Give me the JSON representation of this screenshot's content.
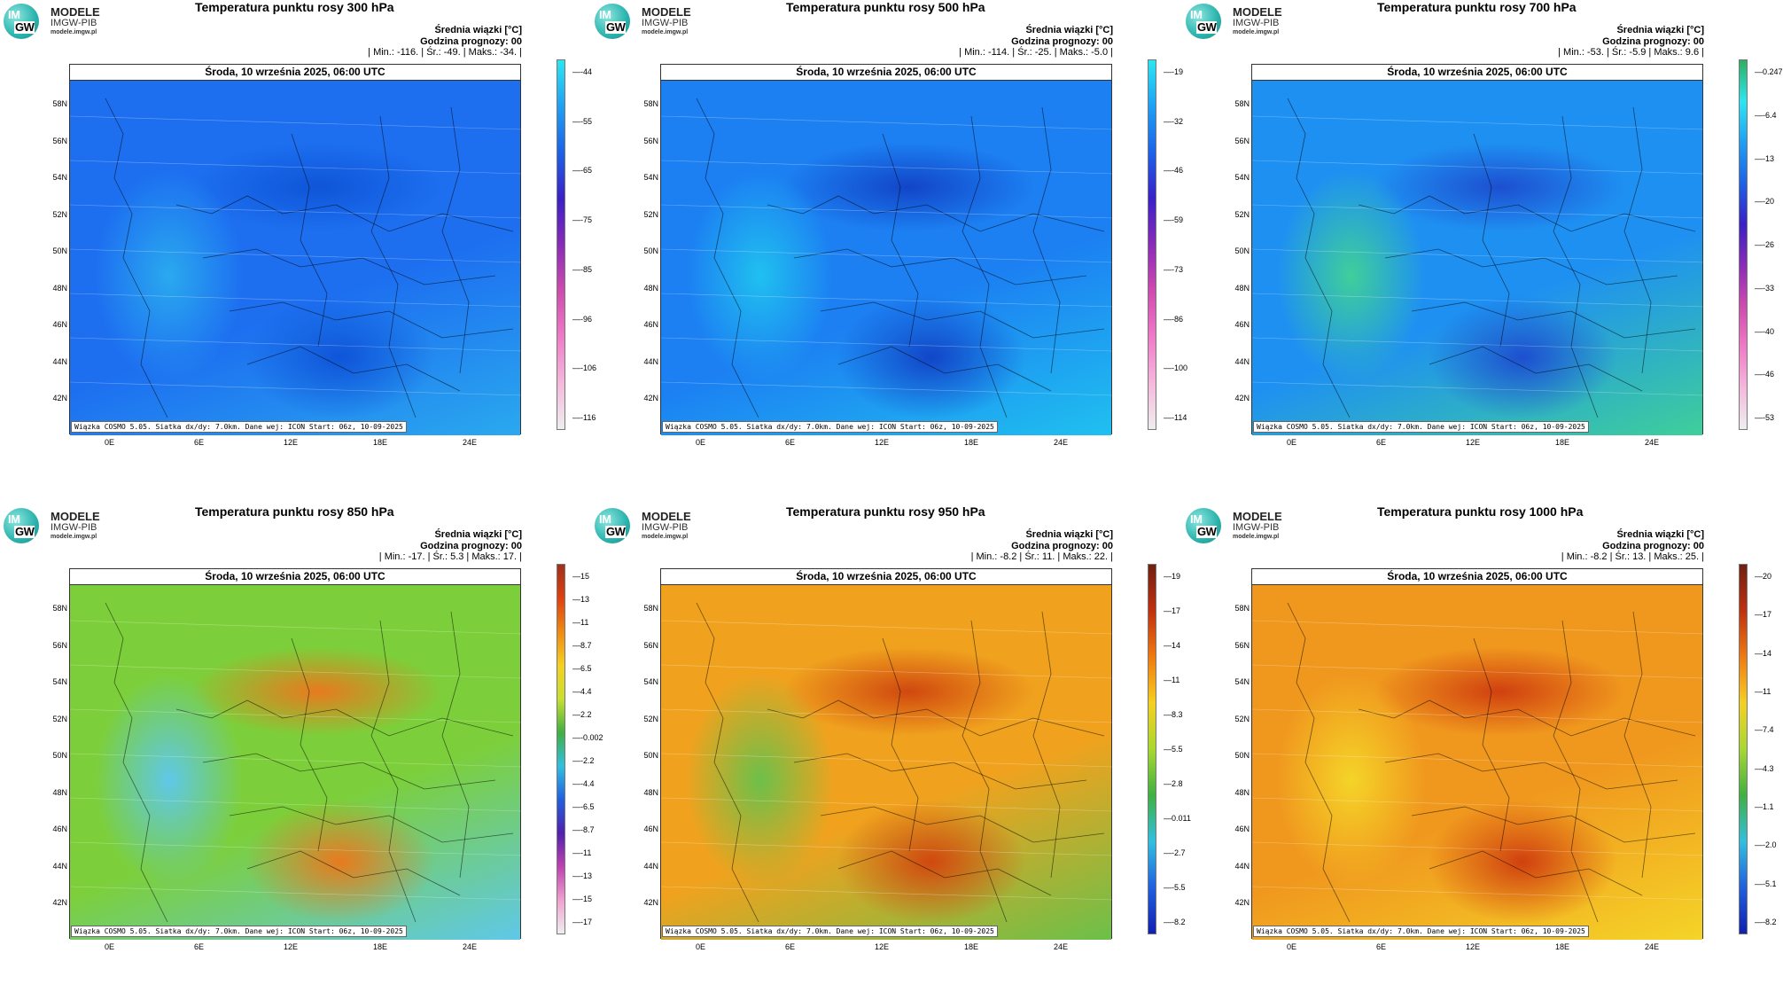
{
  "common": {
    "logo_title": "MODELE",
    "logo_sub": "IMGW-PIB",
    "logo_url": "modele.imgw.pl",
    "logo_im": "IM",
    "logo_gw": "GW",
    "mean_label": "Średnia wiązki [°C]",
    "forecast_hour": "Godzina prognozy: 00",
    "date": "Środa, 10 września 2025, 06:00 UTC",
    "footer": "Wiązka COSMO 5.05. Siatka dx/dy: 7.0km. Dane wej: ICON Start: 06z, 10-09-2025",
    "lat_labels": [
      "58N",
      "56N",
      "54N",
      "52N",
      "50N",
      "48N",
      "46N",
      "44N",
      "42N"
    ],
    "lon_labels": [
      "0E",
      "6E",
      "12E",
      "18E",
      "24E"
    ]
  },
  "panels": [
    {
      "title": "Temperatura punktu rosy 300 hPa",
      "stats": "| Min.: -116. | Śr.: -49. | Maks.: -34. |",
      "colorbar": [
        "-44",
        "-55",
        "-65",
        "-75",
        "-85",
        "-96",
        "-106",
        "-116"
      ],
      "colors": {
        "bg": "#1d6ff0",
        "a": "#0f55d8",
        "b": "#2aa9ef"
      },
      "scale": [
        "#2ce6f0",
        "#1ea0f5",
        "#1c62e8",
        "#3a20c8",
        "#8a2ab8",
        "#d04ab0",
        "#f07ac8",
        "#f5b8dc",
        "#eeeeee"
      ]
    },
    {
      "title": "Temperatura punktu rosy 500 hPa",
      "stats": "| Min.: -114. | Śr.: -25. | Maks.: -5.0 |",
      "colorbar": [
        "-19",
        "-32",
        "-46",
        "-59",
        "-73",
        "-86",
        "-100",
        "-114"
      ],
      "colors": {
        "bg": "#1c7ff2",
        "a": "#1245c8",
        "b": "#20c0f0"
      },
      "scale": [
        "#2ce6f0",
        "#1ea0f5",
        "#1c62e8",
        "#3a20c8",
        "#8a2ab8",
        "#d04ab0",
        "#f07ac8",
        "#f5b8dc",
        "#eeeeee"
      ]
    },
    {
      "title": "Temperatura punktu rosy 700 hPa",
      "stats": "| Min.: -53. | Śr.: -5.9 | Maks.: 9.6 |",
      "colorbar": [
        "0.247",
        "-6.4",
        "-13",
        "-20",
        "-26",
        "-33",
        "-40",
        "-46",
        "-53"
      ],
      "colors": {
        "bg": "#1e90f2",
        "a": "#1d4fd0",
        "b": "#3fcf9a"
      },
      "scale": [
        "#2db060",
        "#2ce6f0",
        "#1ea0f5",
        "#1c62e8",
        "#3a20c8",
        "#8a2ab8",
        "#d04ab0",
        "#f07ac8",
        "#f5b8dc",
        "#eeeeee"
      ]
    },
    {
      "title": "Temperatura punktu rosy 850 hPa",
      "stats": "| Min.: -17. | Śr.: 5.3 | Maks.: 17. |",
      "colorbar": [
        "15",
        "13",
        "11",
        "8.7",
        "6.5",
        "4.4",
        "2.2",
        "-0.002",
        "-2.2",
        "-4.4",
        "-6.5",
        "-8.7",
        "-11",
        "-13",
        "-15",
        "-17"
      ],
      "colors": {
        "bg": "#7ccf3a",
        "a": "#e87a1e",
        "b": "#5fc8e8"
      },
      "scale": [
        "#a0301a",
        "#e04010",
        "#f08a10",
        "#f5d020",
        "#c8e030",
        "#40b040",
        "#30c0e0",
        "#2060e0",
        "#5020b0",
        "#c040b0",
        "#f0a0d0",
        "#eeeeee"
      ]
    },
    {
      "title": "Temperatura punktu rosy 950 hPa",
      "stats": "| Min.: -8.2 | Śr.: 11. | Maks.: 22. |",
      "colorbar": [
        "19",
        "17",
        "14",
        "11",
        "8.3",
        "5.5",
        "2.8",
        "0.011",
        "-2.7",
        "-5.5",
        "-8.2"
      ],
      "colors": {
        "bg": "#f0a21e",
        "a": "#d0480f",
        "b": "#6cc04a"
      },
      "scale": [
        "#702010",
        "#c03010",
        "#f07a10",
        "#f5d020",
        "#a8d830",
        "#40b040",
        "#30c0e0",
        "#2060e0",
        "#1020b0"
      ]
    },
    {
      "title": "Temperatura punktu rosy 1000 hPa",
      "stats": "| Min.: -8.2 | Śr.: 13. | Maks.: 25. |",
      "colorbar": [
        "20",
        "17",
        "14",
        "11",
        "7.4",
        "4.3",
        "1.1",
        "-2.0",
        "-5.1",
        "-8.2"
      ],
      "colors": {
        "bg": "#f0981e",
        "a": "#d0400f",
        "b": "#f5d428"
      },
      "scale": [
        "#702010",
        "#c03010",
        "#f07a10",
        "#f5d020",
        "#a8d830",
        "#40b040",
        "#30c0e0",
        "#2060e0",
        "#1020b0"
      ]
    }
  ]
}
